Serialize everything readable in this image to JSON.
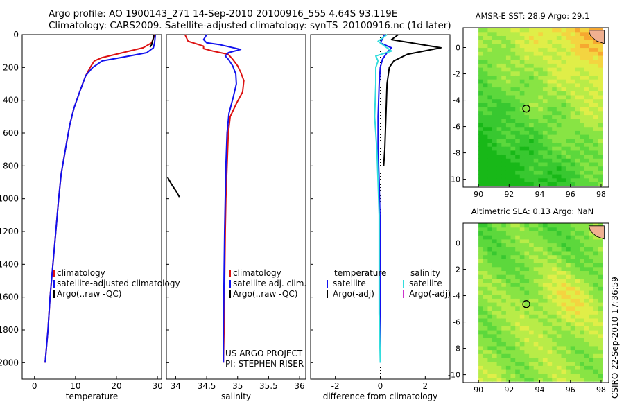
{
  "header": {
    "line1": "Argo profile: AO 1900143_271 14-Sep-2010 20100916_555 4.64S 93.119E",
    "line2": "Climatology: CARS2009. Satellite-adjusted climatology: synTS_20100916.nc (1d later)"
  },
  "credit": "CSIRO 22-Sep-2010 17:36:59",
  "colors": {
    "clim": "#dd1111",
    "sat": "#1111ee",
    "argo": "#000000",
    "sat_diff": "#33dddd",
    "argo_adj": "#cc33cc"
  },
  "chart_data": [
    {
      "type": "line",
      "xlabel": "temperature",
      "ylabel": "",
      "xlim": [
        -3,
        31
      ],
      "ylim": [
        0,
        2100
      ],
      "y_reversed": true,
      "xticks": [
        0,
        10,
        20,
        30
      ],
      "yticks": [
        0,
        200,
        400,
        600,
        800,
        1000,
        1200,
        1400,
        1600,
        1800,
        2000
      ],
      "legend_position": "lower-center",
      "legend": [
        "climatology",
        "satellite-adjusted climatology",
        "Argo(..raw -QC)"
      ],
      "annotations": [],
      "series": [
        {
          "name": "climatology",
          "color_key": "clim",
          "x": [
            29.3,
            28.6,
            26.5,
            21.5,
            16.5,
            14.6,
            13.6,
            12.5,
            11.0,
            9.6,
            8.6,
            7.9,
            7.2,
            6.5,
            5.9,
            5.2,
            4.5,
            3.8,
            3.3,
            2.6
          ],
          "y": [
            0,
            50,
            80,
            110,
            140,
            160,
            200,
            250,
            350,
            450,
            550,
            650,
            750,
            850,
            1000,
            1200,
            1400,
            1600,
            1800,
            2000
          ]
        },
        {
          "name": "satellite-adjusted climatology",
          "color_key": "sat",
          "x": [
            29.5,
            29.3,
            29.0,
            27.4,
            21.0,
            16.5,
            14.2,
            12.5,
            11.0,
            9.6,
            8.6,
            7.9,
            7.2,
            6.5,
            5.9,
            5.2,
            4.5,
            3.8,
            3.3,
            2.6
          ],
          "y": [
            0,
            50,
            80,
            110,
            140,
            160,
            200,
            250,
            350,
            450,
            550,
            650,
            750,
            850,
            1000,
            1200,
            1400,
            1600,
            1800,
            2000
          ]
        },
        {
          "name": "Argo(..raw -QC)",
          "color_key": "argo",
          "x": [
            29.1,
            29.0,
            28.8,
            28.6,
            28.2
          ],
          "y": [
            0,
            20,
            40,
            60,
            75
          ]
        }
      ]
    },
    {
      "type": "line",
      "xlabel": "salinity",
      "ylabel": "",
      "xlim": [
        33.85,
        36.1
      ],
      "ylim": [
        0,
        2100
      ],
      "y_reversed": true,
      "xticks": [
        34,
        34.5,
        35,
        35.5,
        36
      ],
      "yticks": [
        0,
        200,
        400,
        600,
        800,
        1000,
        1200,
        1400,
        1600,
        1800,
        2000
      ],
      "legend_position": "lower-center",
      "legend": [
        "climatology",
        "satellite adj. clim.",
        "Argo(..raw -QC)"
      ],
      "annotations": [
        "US ARGO PROJECT",
        "PI: STEPHEN RISER"
      ],
      "series": [
        {
          "name": "climatology",
          "color_key": "clim",
          "x": [
            34.15,
            34.2,
            34.45,
            34.45,
            34.6,
            34.85,
            34.92,
            35.0,
            35.05,
            35.1,
            35.08,
            34.98,
            34.88,
            34.85,
            34.83,
            34.81,
            34.8,
            34.79,
            34.78,
            34.77
          ],
          "y": [
            0,
            40,
            70,
            85,
            100,
            120,
            150,
            190,
            230,
            280,
            350,
            420,
            500,
            600,
            800,
            1000,
            1200,
            1500,
            1800,
            2000
          ]
        },
        {
          "name": "satellite adj. clim.",
          "color_key": "sat",
          "x": [
            34.5,
            34.45,
            34.5,
            34.7,
            35.05,
            34.85,
            34.8,
            34.85,
            34.92,
            34.97,
            34.98,
            34.93,
            34.86,
            34.83,
            34.81,
            34.8,
            34.79,
            34.78,
            34.77,
            34.77
          ],
          "y": [
            0,
            30,
            50,
            60,
            90,
            110,
            130,
            150,
            190,
            240,
            300,
            380,
            480,
            600,
            800,
            1000,
            1200,
            1500,
            1800,
            2000
          ]
        },
        {
          "name": "Argo(..raw -QC)",
          "color_key": "argo",
          "x": [
            33.87,
            33.93,
            34.0,
            34.06
          ],
          "y": [
            870,
            910,
            950,
            990
          ]
        }
      ]
    },
    {
      "type": "line",
      "xlabel": "difference from climatology",
      "ylabel": "",
      "xlim": [
        -3.1,
        3.1
      ],
      "ylim": [
        0,
        2100
      ],
      "y_reversed": true,
      "xticks": [
        -2,
        0,
        2
      ],
      "yticks": [
        0,
        200,
        400,
        600,
        800,
        1000,
        1200,
        1400,
        1600,
        1800,
        2000
      ],
      "legend_position": "lower-center",
      "legend_groups": [
        {
          "title": "temperature",
          "items": [
            "satellite",
            "Argo(-adj)"
          ]
        },
        {
          "title": "salinity",
          "items": [
            "satellite",
            "Argo(-adj)"
          ]
        }
      ],
      "annotations": [],
      "series": [
        {
          "name": "temperature satellite",
          "color_key": "sat",
          "x": [
            0.2,
            0.0,
            0.5,
            0.3,
            0.1,
            0.0,
            -0.05,
            -0.1,
            -0.1,
            -0.05,
            0.0,
            0.0,
            0.0
          ],
          "y": [
            0,
            50,
            80,
            110,
            150,
            200,
            300,
            500,
            700,
            900,
            1200,
            1600,
            2000
          ]
        },
        {
          "name": "temperature Argo(-adj)",
          "color_key": "argo",
          "x": [
            0.8,
            0.5,
            2.7,
            1.2,
            0.6,
            0.4,
            0.3,
            0.25,
            0.2,
            0.15
          ],
          "y": [
            0,
            30,
            80,
            120,
            160,
            200,
            300,
            500,
            700,
            800
          ]
        },
        {
          "name": "salinity satellite",
          "color_key": "sat_diff",
          "x": [
            0.3,
            -0.1,
            0.2,
            0.5,
            -0.2,
            -0.1,
            -0.2,
            -0.2,
            -0.25,
            -0.15,
            -0.1,
            -0.05,
            -0.05,
            -0.05,
            0.0
          ],
          "y": [
            0,
            40,
            70,
            100,
            130,
            160,
            200,
            300,
            500,
            700,
            900,
            1100,
            1400,
            1700,
            2000
          ]
        }
      ]
    },
    {
      "type": "heatmap",
      "title": "AMSR-E SST: 28.9 Argo: 29.1",
      "xlim": [
        89,
        98.5
      ],
      "ylim": [
        -10.6,
        1.5
      ],
      "xticks": [
        90,
        92,
        94,
        96,
        98
      ],
      "yticks": [
        0,
        -2,
        -4,
        -6,
        -8,
        -10
      ],
      "data_xlim": [
        90,
        98
      ],
      "data_ylim": [
        -10.5,
        1.3
      ],
      "marker": {
        "lon": 93.12,
        "lat": -4.64
      },
      "palette": [
        "#18b818",
        "#38c830",
        "#5cd83c",
        "#88e444",
        "#b8ec48",
        "#e0ee48",
        "#f4d440",
        "#f6a830"
      ]
    },
    {
      "type": "heatmap",
      "title": "Altimetric SLA: 0.13 Argo: NaN",
      "xlim": [
        89,
        98.5
      ],
      "ylim": [
        -10.6,
        1.5
      ],
      "xticks": [
        90,
        92,
        94,
        96,
        98
      ],
      "yticks": [
        0,
        -2,
        -4,
        -6,
        -8,
        -10
      ],
      "data_xlim": [
        90,
        98
      ],
      "data_ylim": [
        -10.5,
        1.3
      ],
      "marker": {
        "lon": 93.12,
        "lat": -4.64
      },
      "palette": [
        "#18b818",
        "#38c830",
        "#5cd83c",
        "#88e444",
        "#b8ec48",
        "#e0ee48",
        "#f4d440",
        "#f6a830"
      ]
    }
  ]
}
